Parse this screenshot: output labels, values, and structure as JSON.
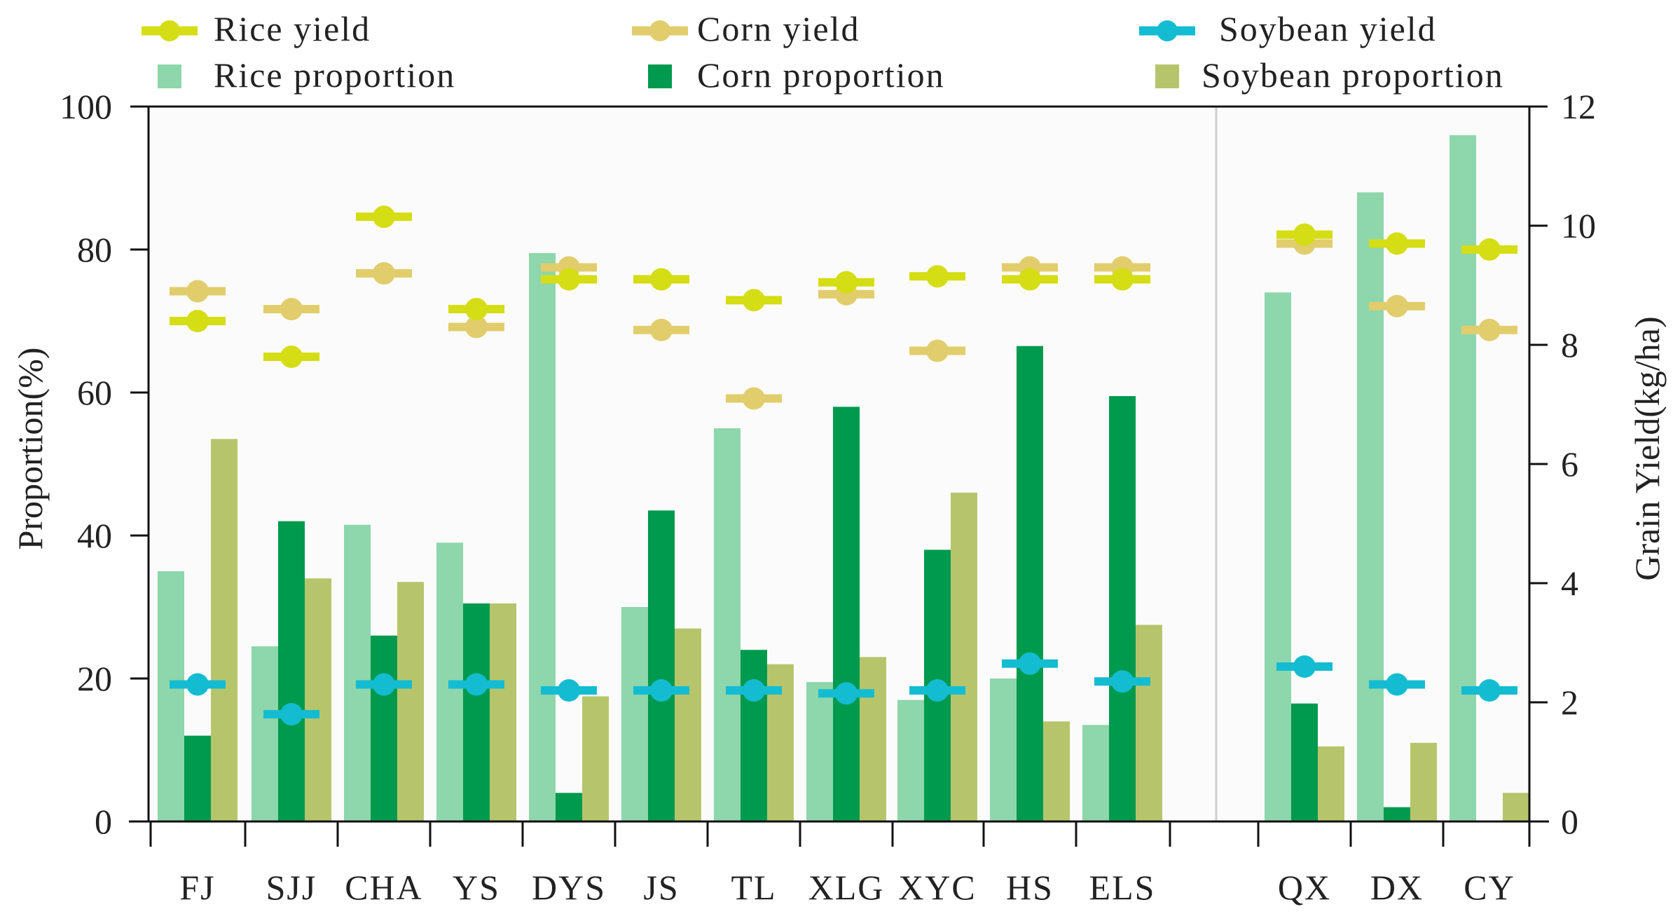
{
  "chart_data": {
    "type": "bar",
    "categories": [
      "FJ",
      "SJJ",
      "CHA",
      "YS",
      "DYS",
      "JS",
      "TL",
      "XLG",
      "XYC",
      "HS",
      "ELS",
      "QX",
      "DX",
      "CY"
    ],
    "bar_series": [
      {
        "name": "Rice proportion",
        "color": "#8ed6ab",
        "values": [
          35,
          24.5,
          41.5,
          39,
          79.5,
          30,
          55,
          19.5,
          17,
          20,
          13.5,
          74,
          88,
          96
        ]
      },
      {
        "name": "Corn proportion",
        "color": "#009a4e",
        "values": [
          12,
          42,
          26,
          30.5,
          4,
          43.5,
          24,
          58,
          38,
          66.5,
          59.5,
          16.5,
          2,
          null
        ]
      },
      {
        "name": "Soybean proportion",
        "color": "#b6c56c",
        "values": [
          53.5,
          34,
          33.5,
          30.5,
          17.5,
          27,
          22,
          23,
          46,
          14,
          27.5,
          10.5,
          11,
          4
        ]
      }
    ],
    "yield_series": [
      {
        "name": "Rice yield",
        "color": "#d5dd14",
        "values": [
          8.4,
          7.8,
          10.15,
          8.6,
          9.1,
          9.1,
          8.75,
          9.05,
          9.15,
          9.1,
          9.1,
          9.85,
          9.7,
          9.6
        ]
      },
      {
        "name": "Corn yield",
        "color": "#e1cd6c",
        "values": [
          8.9,
          8.6,
          9.2,
          8.3,
          9.3,
          8.25,
          7.1,
          8.85,
          7.9,
          9.3,
          9.3,
          9.7,
          8.65,
          8.25
        ]
      },
      {
        "name": "Soybean yield",
        "color": "#14bcd2",
        "values": [
          2.3,
          1.8,
          2.3,
          2.3,
          2.2,
          2.2,
          2.2,
          2.15,
          2.2,
          2.65,
          2.35,
          2.6,
          2.3,
          2.2
        ]
      }
    ],
    "legend": [
      {
        "label": "Rice yield",
        "kind": "line-marker",
        "color": "#d5dd14"
      },
      {
        "label": "Corn yield",
        "kind": "line-marker",
        "color": "#e1cd6c"
      },
      {
        "label": "Soybean yield",
        "kind": "line-marker",
        "color": "#14bcd2"
      },
      {
        "label": "Rice proportion",
        "kind": "square",
        "color": "#8ed6ab"
      },
      {
        "label": "Corn proportion",
        "kind": "square",
        "color": "#009a4e"
      },
      {
        "label": "Soybean proportion",
        "kind": "square",
        "color": "#b6c56c"
      }
    ],
    "legend_position": "top",
    "ylabel_left": "Proportion(%)",
    "ylabel_right": "Grain Yield(kg/ha)",
    "ylim_left": [
      0,
      100
    ],
    "ylim_right": [
      0,
      12
    ],
    "yticks_left": [
      0,
      20,
      40,
      60,
      80,
      100
    ],
    "yticks_right": [
      0,
      2,
      4,
      6,
      8,
      10,
      12
    ],
    "group_separator_after": "ELS",
    "grid": false
  }
}
